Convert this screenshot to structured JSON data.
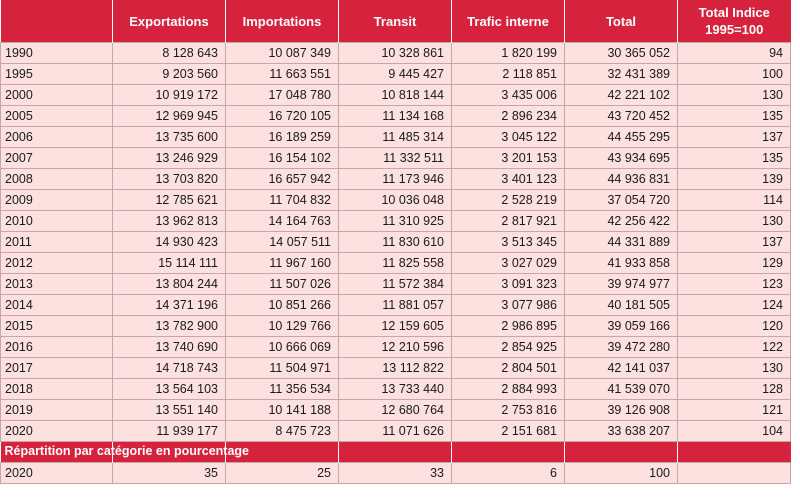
{
  "headers": [
    "",
    "Exportations",
    "Importations",
    "Transit",
    "Trafic interne",
    "Total",
    "Total Indice\n1995=100"
  ],
  "rows": [
    [
      "1990",
      "8 128 643",
      "10 087 349",
      "10 328 861",
      "1 820 199",
      "30 365 052",
      "94"
    ],
    [
      "1995",
      "9 203 560",
      "11 663 551",
      "9 445 427",
      "2 118 851",
      "32 431 389",
      "100"
    ],
    [
      "2000",
      "10 919 172",
      "17 048 780",
      "10 818 144",
      "3 435 006",
      "42 221 102",
      "130"
    ],
    [
      "2005",
      "12 969 945",
      "16 720 105",
      "11 134 168",
      "2 896 234",
      "43 720 452",
      "135"
    ],
    [
      "2006",
      "13 735 600",
      "16 189 259",
      "11 485 314",
      "3 045 122",
      "44 455 295",
      "137"
    ],
    [
      "2007",
      "13 246 929",
      "16 154 102",
      "11 332 511",
      "3 201 153",
      "43 934 695",
      "135"
    ],
    [
      "2008",
      "13 703 820",
      "16 657 942",
      "11 173 946",
      "3 401 123",
      "44 936 831",
      "139"
    ],
    [
      "2009",
      "12 785 621",
      "11 704 832",
      "10 036 048",
      "2 528 219",
      "37 054 720",
      "114"
    ],
    [
      "2010",
      "13 962 813",
      "14 164 763",
      "11 310 925",
      "2 817 921",
      "42 256 422",
      "130"
    ],
    [
      "2011",
      "14 930 423",
      "14 057 511",
      "11 830 610",
      "3 513 345",
      "44 331 889",
      "137"
    ],
    [
      "2012",
      "15 114 111",
      "11 967 160",
      "11 825 558",
      "3 027 029",
      "41 933 858",
      "129"
    ],
    [
      "2013",
      "13 804 244",
      "11 507 026",
      "11 572 384",
      "3 091 323",
      "39 974 977",
      "123"
    ],
    [
      "2014",
      "14 371 196",
      "10 851 266",
      "11 881 057",
      "3 077 986",
      "40 181 505",
      "124"
    ],
    [
      "2015",
      "13 782 900",
      "10 129 766",
      "12 159 605",
      "2 986 895",
      "39 059 166",
      "120"
    ],
    [
      "2016",
      "13 740 690",
      "10 666 069",
      "12 210 596",
      "2 854 925",
      "39 472 280",
      "122"
    ],
    [
      "2017",
      "14 718 743",
      "11 504 971",
      "13 112 822",
      "2 804 501",
      "42 141 037",
      "130"
    ],
    [
      "2018",
      "13 564 103",
      "11 356 534",
      "13 733 440",
      "2 884 993",
      "41 539 070",
      "128"
    ],
    [
      "2019",
      "13 551 140",
      "10 141 188",
      "12 680 764",
      "2 753 816",
      "39 126 908",
      "121"
    ],
    [
      "2020",
      "11 939 177",
      "8 475 723",
      "11 071 626",
      "2 151 681",
      "33 638 207",
      "104"
    ]
  ],
  "section_label": "Répartition par catégorie en pourcentage",
  "footer_row": [
    "2020",
    "35",
    "25",
    "33",
    "6",
    "100",
    ""
  ]
}
